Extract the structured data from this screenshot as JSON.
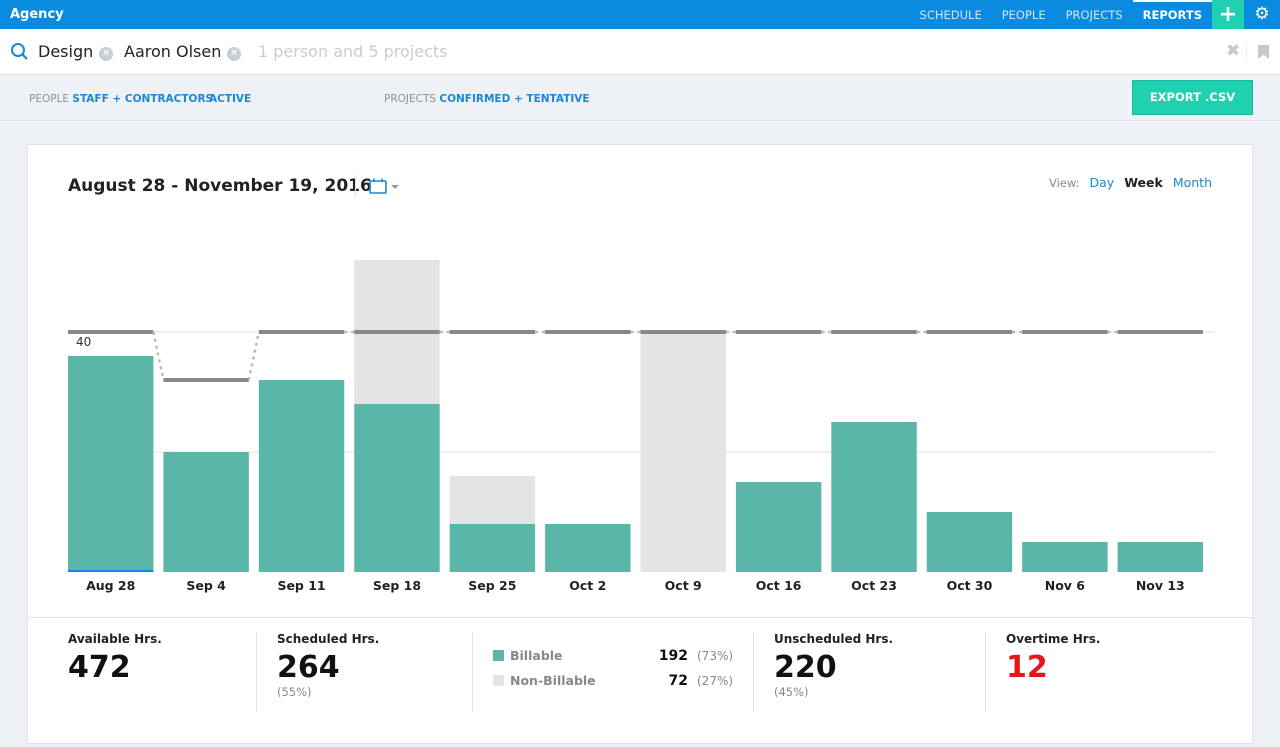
{
  "app": {
    "title": "Agency",
    "nav": [
      {
        "label": "SCHEDULE"
      },
      {
        "label": "PEOPLE"
      },
      {
        "label": "PROJECTS"
      },
      {
        "label": "REPORTS",
        "active": true
      }
    ],
    "add_icon": "plus-icon",
    "settings_icon": "gear-icon"
  },
  "search": {
    "chips": [
      "Design",
      "Aaron Olsen"
    ],
    "placeholder": "1 person and 5 projects"
  },
  "filters": {
    "people_label": "PEOPLE",
    "people_value": "STAFF + CONTRACTORS",
    "status_value": "ACTIVE",
    "projects_label": "PROJECTS",
    "projects_value": "CONFIRMED + TENTATIVE",
    "export_label": "EXPORT .CSV"
  },
  "report": {
    "date_range": "August 28 - November 19, 2016",
    "view_label": "View:",
    "view_options": [
      "Day",
      "Week",
      "Month"
    ],
    "view_selected": "Week"
  },
  "colors": {
    "billable": "#5bb6aa",
    "non_billable": "#e4e4e4",
    "capacity": "#888888",
    "accent": "#0b8be0",
    "overtime": "#e8141b"
  },
  "chart_data": {
    "type": "bar",
    "stacked": true,
    "categories": [
      "Aug 28",
      "Sep 4",
      "Sep 11",
      "Sep 18",
      "Sep 25",
      "Oct 2",
      "Oct 9",
      "Oct 16",
      "Oct 23",
      "Oct 30",
      "Nov 6",
      "Nov 13"
    ],
    "series": [
      {
        "name": "Billable",
        "values": [
          36,
          20,
          32,
          28,
          8,
          8,
          0,
          15,
          25,
          10,
          5,
          5
        ]
      },
      {
        "name": "Non-Billable",
        "values": [
          0,
          0,
          0,
          24,
          8,
          0,
          40,
          0,
          0,
          0,
          0,
          0
        ]
      }
    ],
    "capacity": [
      40,
      32,
      40,
      40,
      40,
      40,
      40,
      40,
      40,
      40,
      40,
      40
    ],
    "yticks": [
      20,
      40
    ],
    "ylim": [
      0,
      56
    ],
    "grid": true
  },
  "stats": {
    "available": {
      "label": "Available Hrs.",
      "value": "472"
    },
    "scheduled": {
      "label": "Scheduled Hrs.",
      "value": "264",
      "pct": "(55%)"
    },
    "billable": {
      "label": "Billable",
      "value": "192",
      "pct": "(73%)"
    },
    "non_billable": {
      "label": "Non-Billable",
      "value": "72",
      "pct": "(27%)"
    },
    "unscheduled": {
      "label": "Unscheduled Hrs.",
      "value": "220",
      "pct": "(45%)"
    },
    "overtime": {
      "label": "Overtime Hrs.",
      "value": "12"
    }
  }
}
